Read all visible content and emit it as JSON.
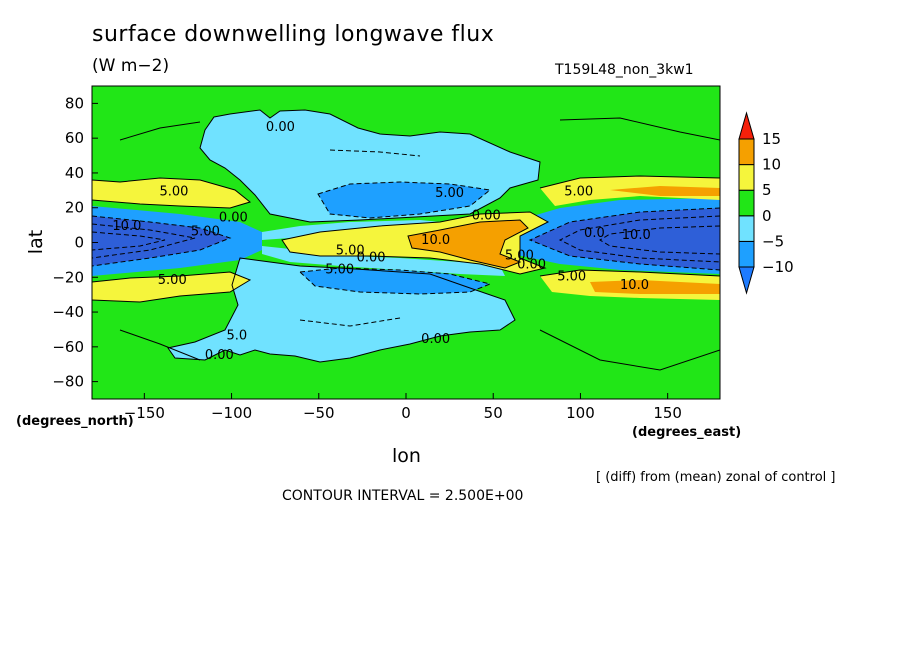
{
  "header": {
    "title": "surface downwelling longwave flux",
    "units": "(W m−2)",
    "run_name": "T159L48_non_3kw1"
  },
  "footer": {
    "x_unit_label": "(degrees_east)",
    "y_unit_label": "(degrees_north)",
    "note": "[ (diff) from (mean) zonal of control ]",
    "contour_interval": "CONTOUR INTERVAL = 2.500E+00"
  },
  "colors": {
    "level_le_m10": "#1e7bff",
    "level_m10_m5": "#1ea0ff",
    "level_m5_0": "#70e2ff",
    "level_0_5": "#21e617",
    "level_5_10": "#f5f53c",
    "level_10_15": "#f5a000",
    "level_ge_15": "#f5200a",
    "strong_negative": "#2e5fd8"
  },
  "chart_data": {
    "type": "contour",
    "title": "surface downwelling longwave flux",
    "xlabel": "lon",
    "ylabel": "lat",
    "xlim": [
      -180,
      180
    ],
    "ylim": [
      -90,
      90
    ],
    "x_ticks": [
      -150,
      -100,
      -50,
      0,
      50,
      100,
      150
    ],
    "x_tick_labels": [
      "−150",
      "−100",
      "−50",
      "0",
      "50",
      "100",
      "150"
    ],
    "y_ticks": [
      80,
      60,
      40,
      20,
      0,
      -20,
      -40,
      -60,
      -80
    ],
    "y_tick_labels": [
      "80",
      "60",
      "40",
      "20",
      "0",
      "−20",
      "−40",
      "−60",
      "−80"
    ],
    "contour_interval": 2.5,
    "colorbar": {
      "levels": [
        -10,
        -5,
        0,
        5,
        10,
        15
      ],
      "labels": [
        "−10",
        "−5",
        "0",
        "5",
        "10",
        "15"
      ]
    },
    "contour_labels": [
      {
        "text": "0.00",
        "lon": -72,
        "lat": 67
      },
      {
        "text": "5.00",
        "lon": -133,
        "lat": 30
      },
      {
        "text": "0.00",
        "lon": -99,
        "lat": 15
      },
      {
        "text": "10.0",
        "lon": -160,
        "lat": 10
      },
      {
        "text": "5.00",
        "lon": -115,
        "lat": 7
      },
      {
        "text": "5.00",
        "lon": 25,
        "lat": 29
      },
      {
        "text": "0.00",
        "lon": 46,
        "lat": 16
      },
      {
        "text": "10.0",
        "lon": 17,
        "lat": 2
      },
      {
        "text": "5.00",
        "lon": -32,
        "lat": -4
      },
      {
        "text": "0.00",
        "lon": -20,
        "lat": -8
      },
      {
        "text": "5.00",
        "lon": -38,
        "lat": -15
      },
      {
        "text": "5.00",
        "lon": 65,
        "lat": -7
      },
      {
        "text": "0.00",
        "lon": 72,
        "lat": -12
      },
      {
        "text": "5.00",
        "lon": 99,
        "lat": 30
      },
      {
        "text": "0.0",
        "lon": 108,
        "lat": 6
      },
      {
        "text": "10.0",
        "lon": 132,
        "lat": 5
      },
      {
        "text": "5.00",
        "lon": 95,
        "lat": -19
      },
      {
        "text": "10.0",
        "lon": 131,
        "lat": -24
      },
      {
        "text": "5.00",
        "lon": -134,
        "lat": -21
      },
      {
        "text": "0.00",
        "lon": -107,
        "lat": -64
      },
      {
        "text": "0.00",
        "lon": 17,
        "lat": -55
      },
      {
        "text": "5.0",
        "lon": -97,
        "lat": -53
      }
    ]
  }
}
